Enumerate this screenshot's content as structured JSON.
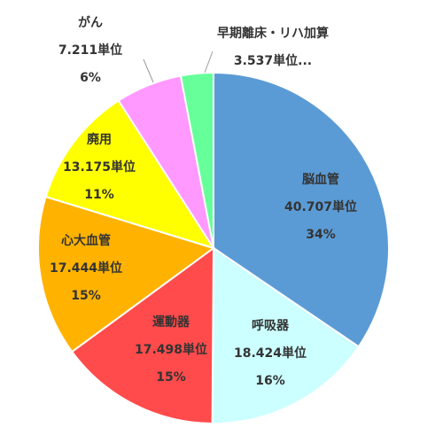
{
  "chart_data": {
    "type": "pie",
    "start_angle_deg": 0,
    "direction": "clockwise",
    "slices": [
      {
        "name": "脳血管",
        "value": 40.707,
        "unit": "単位",
        "value_label": "40.707単位",
        "percent_label": "34%",
        "color": "#5B9BD5"
      },
      {
        "name": "呼吸器",
        "value": 18.424,
        "unit": "単位",
        "value_label": "18.424単位",
        "percent_label": "16%",
        "color": "#CCFFFF"
      },
      {
        "name": "運動器",
        "value": 17.498,
        "unit": "単位",
        "value_label": "17.498単位",
        "percent_label": "15%",
        "color": "#FF4B4B"
      },
      {
        "name": "心大血管",
        "value": 17.444,
        "unit": "単位",
        "value_label": "17.444単位",
        "percent_label": "15%",
        "color": "#FFB300"
      },
      {
        "name": "廃用",
        "value": 13.175,
        "unit": "単位",
        "value_label": "13.175単位",
        "percent_label": "11%",
        "color": "#FFFF00"
      },
      {
        "name": "がん",
        "value": 7.211,
        "unit": "単位",
        "value_label": "7.211単位",
        "percent_label": "6%",
        "color": "#FF99FF"
      },
      {
        "name": "早期離床・リハ加算",
        "value": 3.537,
        "unit": "単位",
        "value_label": "3.537単位...",
        "percent_label": "",
        "color": "#66FF99"
      }
    ]
  }
}
